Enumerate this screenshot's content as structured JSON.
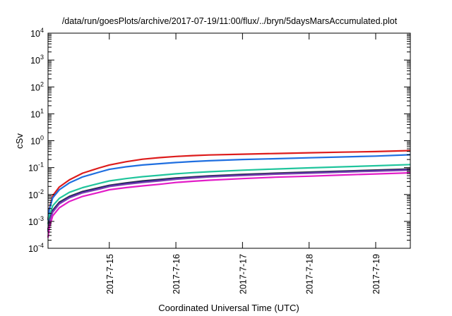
{
  "chart_data": {
    "type": "line",
    "title": "/data/run/goesPlots/archive/2017-07-19/11:00/flux/../bryn/5daysMarsAccumulated.plot",
    "xlabel": "Coordinated Universal Time (UTC)",
    "ylabel": "cSv",
    "y_scale": "log",
    "ylim": [
      0.0001,
      10000
    ],
    "y_ticks": [
      {
        "value": 0.0001,
        "base": "10",
        "exp": "-4"
      },
      {
        "value": 0.001,
        "base": "10",
        "exp": "-3"
      },
      {
        "value": 0.01,
        "base": "10",
        "exp": "-2"
      },
      {
        "value": 0.1,
        "base": "10",
        "exp": "-1"
      },
      {
        "value": 1,
        "base": "10",
        "exp": "0"
      },
      {
        "value": 10,
        "base": "10",
        "exp": "1"
      },
      {
        "value": 100,
        "base": "10",
        "exp": "2"
      },
      {
        "value": 1000,
        "base": "10",
        "exp": "3"
      },
      {
        "value": 10000,
        "base": "10",
        "exp": "4"
      }
    ],
    "xlim": [
      14.08,
      19.52
    ],
    "x_ticks": [
      {
        "value": 15,
        "label": "2017-7-15"
      },
      {
        "value": 16,
        "label": "2017-7-16"
      },
      {
        "value": 17,
        "label": "2017-7-17"
      },
      {
        "value": 18,
        "label": "2017-7-18"
      },
      {
        "value": 19,
        "label": "2017-7-19"
      }
    ],
    "grid": false,
    "legend": "none",
    "x": [
      14.08,
      14.1,
      14.15,
      14.25,
      14.4,
      14.6,
      14.85,
      15.0,
      15.25,
      15.5,
      15.75,
      16.0,
      16.25,
      16.5,
      17.0,
      17.5,
      18.0,
      18.5,
      19.0,
      19.52
    ],
    "series": [
      {
        "color": "#dd1c1c",
        "values": [
          0.0012,
          0.003,
          0.009,
          0.019,
          0.035,
          0.062,
          0.098,
          0.125,
          0.165,
          0.205,
          0.235,
          0.26,
          0.28,
          0.295,
          0.315,
          0.335,
          0.355,
          0.375,
          0.395,
          0.43
        ]
      },
      {
        "color": "#1f6fe0",
        "values": [
          0.0011,
          0.0028,
          0.0075,
          0.015,
          0.027,
          0.045,
          0.068,
          0.086,
          0.107,
          0.125,
          0.14,
          0.155,
          0.168,
          0.18,
          0.2,
          0.215,
          0.232,
          0.25,
          0.268,
          0.3
        ]
      },
      {
        "color": "#20c59c",
        "values": [
          0.0008,
          0.0016,
          0.0038,
          0.0072,
          0.012,
          0.018,
          0.026,
          0.032,
          0.039,
          0.046,
          0.052,
          0.059,
          0.065,
          0.07,
          0.08,
          0.089,
          0.098,
          0.107,
          0.117,
          0.13
        ]
      },
      {
        "color": "#3a3a3a",
        "values": [
          0.0005,
          0.0011,
          0.0026,
          0.0052,
          0.0085,
          0.013,
          0.018,
          0.022,
          0.027,
          0.032,
          0.036,
          0.041,
          0.045,
          0.049,
          0.056,
          0.062,
          0.068,
          0.074,
          0.081,
          0.089
        ]
      },
      {
        "color": "#1b1b8a",
        "values": [
          0.00045,
          0.001,
          0.0024,
          0.0048,
          0.008,
          0.0122,
          0.017,
          0.021,
          0.0255,
          0.03,
          0.034,
          0.039,
          0.043,
          0.047,
          0.053,
          0.059,
          0.065,
          0.071,
          0.077,
          0.085
        ]
      },
      {
        "color": "#7a3fb0",
        "values": [
          0.0004,
          0.00095,
          0.0022,
          0.0045,
          0.0075,
          0.0115,
          0.016,
          0.0198,
          0.024,
          0.028,
          0.032,
          0.037,
          0.041,
          0.045,
          0.051,
          0.057,
          0.062,
          0.068,
          0.074,
          0.081
        ]
      },
      {
        "color": "#e31cc7",
        "values": [
          0.00025,
          0.0006,
          0.0016,
          0.0032,
          0.0055,
          0.0085,
          0.012,
          0.015,
          0.018,
          0.021,
          0.024,
          0.028,
          0.031,
          0.034,
          0.039,
          0.044,
          0.048,
          0.053,
          0.058,
          0.064
        ]
      }
    ]
  }
}
